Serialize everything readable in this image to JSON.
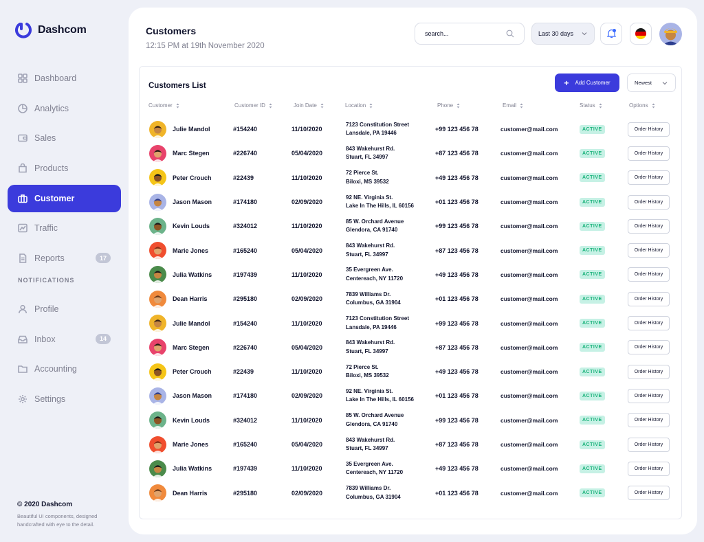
{
  "brand": {
    "name": "Dashcom",
    "color": "#3b3bdc"
  },
  "nav": {
    "items": [
      {
        "label": "Dashboard",
        "icon": "dashboard-icon",
        "active": false
      },
      {
        "label": "Analytics",
        "icon": "analytics-icon",
        "active": false
      },
      {
        "label": "Sales",
        "icon": "wallet-icon",
        "active": false
      },
      {
        "label": "Products",
        "icon": "bag-icon",
        "active": false
      },
      {
        "label": "Customer",
        "icon": "briefcase-icon",
        "active": true
      },
      {
        "label": "Traffic",
        "icon": "traffic-icon",
        "active": false
      },
      {
        "label": "Reports",
        "icon": "report-icon",
        "active": false,
        "badge": "17"
      }
    ],
    "section_label": "NOTIFICATIONS",
    "items2": [
      {
        "label": "Profile",
        "icon": "user-icon"
      },
      {
        "label": "Inbox",
        "icon": "inbox-icon",
        "badge": "14"
      },
      {
        "label": "Accounting",
        "icon": "folder-icon"
      },
      {
        "label": "Settings",
        "icon": "gear-icon"
      }
    ]
  },
  "footer": {
    "title": "© 2020 Dashcom",
    "text": "Beautiful UI components, designed handcrafted with eye to the detail."
  },
  "header": {
    "title": "Customers",
    "subtitle": "12:15 PM at 19th November 2020",
    "search_placeholder": "search...",
    "range_label": "Last 30 days"
  },
  "card": {
    "title": "Customers List",
    "add_label": "Add Customer",
    "sort_label": "Newest",
    "columns": [
      "Customer",
      "Customer ID",
      "Join Date",
      "Location",
      "Phone",
      "Email",
      "Status",
      "Options"
    ],
    "status_color": "#1bb37b",
    "rows": [
      {
        "name": "Julie Mandol",
        "id": "#154240",
        "date": "11/10/2020",
        "loc1": "7123 Constitution Street",
        "loc2": "Lansdale, PA 19446",
        "phone": "+99 123 456 78",
        "email": "customer@mail.com",
        "status": "ACTIVE",
        "option": "Order History",
        "avatar_bg": "#f0b429",
        "skin": "#c68642",
        "hair": "#3b2416"
      },
      {
        "name": "Marc Stegen",
        "id": "#226740",
        "date": "05/04/2020",
        "loc1": "843 Wakehurst Rd.",
        "loc2": "Stuart, FL 34997",
        "phone": "+87 123 456 78",
        "email": "customer@mail.com",
        "status": "ACTIVE",
        "option": "Order History",
        "avatar_bg": "#e8436b",
        "skin": "#e0a36c",
        "hair": "#2a1a12"
      },
      {
        "name": "Peter Crouch",
        "id": "#22439",
        "date": "11/10/2020",
        "loc1": "72 Pierce St.",
        "loc2": "Biloxi, MS 39532",
        "phone": "+49 123 456 78",
        "email": "customer@mail.com",
        "status": "ACTIVE",
        "option": "Order History",
        "avatar_bg": "#f5c518",
        "skin": "#8d5524",
        "hair": "#1a1a1a"
      },
      {
        "name": "Jason Mason",
        "id": "#174180",
        "date": "02/09/2020",
        "loc1": "92 NE. Virginia St.",
        "loc2": "Lake In The Hills, IL 60156",
        "phone": "+01 123 456 78",
        "email": "customer@mail.com",
        "status": "ACTIVE",
        "option": "Order History",
        "avatar_bg": "#a9b4e6",
        "skin": "#c68642",
        "hair": "#2c3e8f"
      },
      {
        "name": "Kevin Louds",
        "id": "#324012",
        "date": "11/10/2020",
        "loc1": "85 W. Orchard Avenue",
        "loc2": "Glendora, CA 91740",
        "phone": "+99 123 456 78",
        "email": "customer@mail.com",
        "status": "ACTIVE",
        "option": "Order History",
        "avatar_bg": "#6cb38a",
        "skin": "#8d5524",
        "hair": "#1a1a1a"
      },
      {
        "name": "Marie Jones",
        "id": "#165240",
        "date": "05/04/2020",
        "loc1": "843 Wakehurst Rd.",
        "loc2": "Stuart, FL 34997",
        "phone": "+87 123 456 78",
        "email": "customer@mail.com",
        "status": "ACTIVE",
        "option": "Order History",
        "avatar_bg": "#f04e2e",
        "skin": "#e0a36c",
        "hair": "#8a2d15"
      },
      {
        "name": "Julia Watkins",
        "id": "#197439",
        "date": "11/10/2020",
        "loc1": "35 Evergreen Ave.",
        "loc2": "Centereach, NY 11720",
        "phone": "+49 123 456 78",
        "email": "customer@mail.com",
        "status": "ACTIVE",
        "option": "Order History",
        "avatar_bg": "#4b8b4b",
        "skin": "#c68642",
        "hair": "#1a1a1a"
      },
      {
        "name": "Dean Harris",
        "id": "#295180",
        "date": "02/09/2020",
        "loc1": "7839 Williams Dr.",
        "loc2": "Columbus, GA 31904",
        "phone": "+01 123 456 78",
        "email": "customer@mail.com",
        "status": "ACTIVE",
        "option": "Order History",
        "avatar_bg": "#f08a3c",
        "skin": "#e0a36c",
        "hair": "#6b3a1a"
      },
      {
        "name": "Julie Mandol",
        "id": "#154240",
        "date": "11/10/2020",
        "loc1": "7123 Constitution Street",
        "loc2": "Lansdale, PA 19446",
        "phone": "+99 123 456 78",
        "email": "customer@mail.com",
        "status": "ACTIVE",
        "option": "Order History",
        "avatar_bg": "#f0b429",
        "skin": "#c68642",
        "hair": "#3b2416"
      },
      {
        "name": "Marc Stegen",
        "id": "#226740",
        "date": "05/04/2020",
        "loc1": "843 Wakehurst Rd.",
        "loc2": "Stuart, FL 34997",
        "phone": "+87 123 456 78",
        "email": "customer@mail.com",
        "status": "ACTIVE",
        "option": "Order History",
        "avatar_bg": "#e8436b",
        "skin": "#e0a36c",
        "hair": "#2a1a12"
      },
      {
        "name": "Peter Crouch",
        "id": "#22439",
        "date": "11/10/2020",
        "loc1": "72 Pierce St.",
        "loc2": "Biloxi, MS 39532",
        "phone": "+49 123 456 78",
        "email": "customer@mail.com",
        "status": "ACTIVE",
        "option": "Order History",
        "avatar_bg": "#f5c518",
        "skin": "#8d5524",
        "hair": "#1a1a1a"
      },
      {
        "name": "Jason Mason",
        "id": "#174180",
        "date": "02/09/2020",
        "loc1": "92 NE. Virginia St.",
        "loc2": "Lake In The Hills, IL 60156",
        "phone": "+01 123 456 78",
        "email": "customer@mail.com",
        "status": "ACTIVE",
        "option": "Order History",
        "avatar_bg": "#a9b4e6",
        "skin": "#c68642",
        "hair": "#2c3e8f"
      },
      {
        "name": "Kevin Louds",
        "id": "#324012",
        "date": "11/10/2020",
        "loc1": "85 W. Orchard Avenue",
        "loc2": "Glendora, CA 91740",
        "phone": "+99 123 456 78",
        "email": "customer@mail.com",
        "status": "ACTIVE",
        "option": "Order History",
        "avatar_bg": "#6cb38a",
        "skin": "#8d5524",
        "hair": "#1a1a1a"
      },
      {
        "name": "Marie Jones",
        "id": "#165240",
        "date": "05/04/2020",
        "loc1": "843 Wakehurst Rd.",
        "loc2": "Stuart, FL 34997",
        "phone": "+87 123 456 78",
        "email": "customer@mail.com",
        "status": "ACTIVE",
        "option": "Order History",
        "avatar_bg": "#f04e2e",
        "skin": "#e0a36c",
        "hair": "#8a2d15"
      },
      {
        "name": "Julia Watkins",
        "id": "#197439",
        "date": "11/10/2020",
        "loc1": "35 Evergreen Ave.",
        "loc2": "Centereach, NY 11720",
        "phone": "+49 123 456 78",
        "email": "customer@mail.com",
        "status": "ACTIVE",
        "option": "Order History",
        "avatar_bg": "#4b8b4b",
        "skin": "#c68642",
        "hair": "#1a1a1a"
      },
      {
        "name": "Dean Harris",
        "id": "#295180",
        "date": "02/09/2020",
        "loc1": "7839 Williams Dr.",
        "loc2": "Columbus, GA 31904",
        "phone": "+01 123 456 78",
        "email": "customer@mail.com",
        "status": "ACTIVE",
        "option": "Order History",
        "avatar_bg": "#f08a3c",
        "skin": "#e0a36c",
        "hair": "#6b3a1a"
      }
    ]
  }
}
